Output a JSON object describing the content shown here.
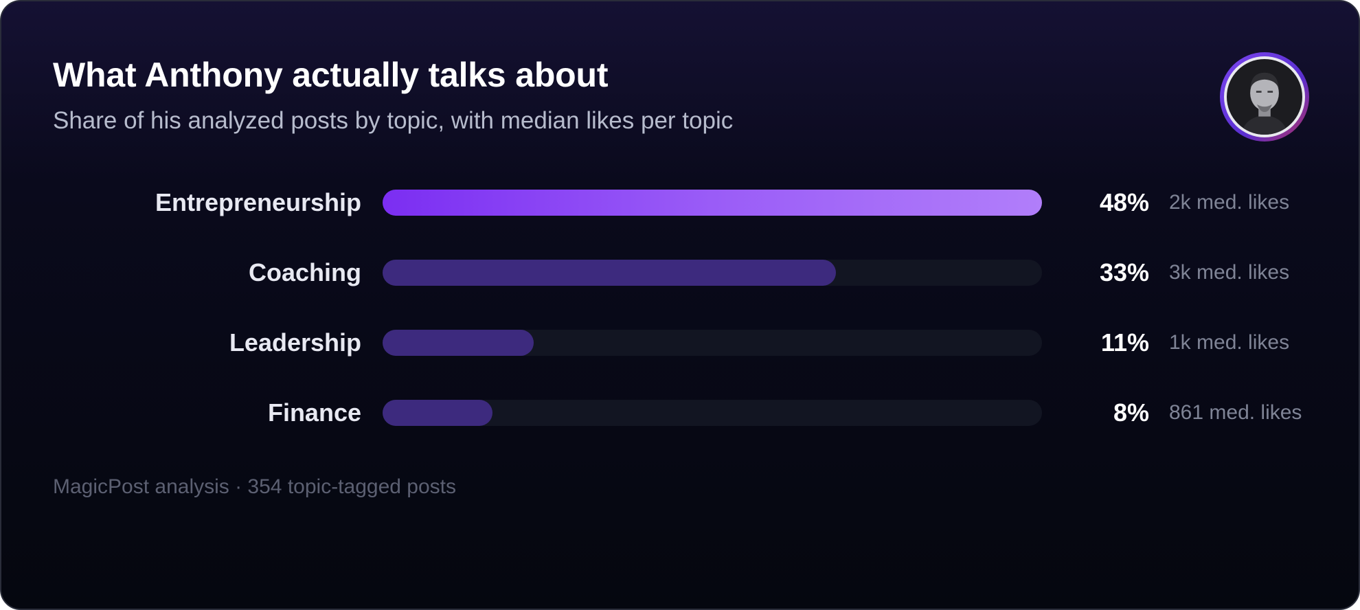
{
  "card": {
    "title": "What Anthony actually talks about",
    "subtitle": "Share of his analyzed posts by topic, with median likes per topic",
    "footer": "MagicPost analysis · 354 topic-tagged posts",
    "avatar_icon": "person-portrait-icon"
  },
  "chart_data": {
    "type": "bar",
    "orientation": "horizontal",
    "title": "What Anthony actually talks about",
    "subtitle": "Share of his analyzed posts by topic, with median likes per topic",
    "categories": [
      "Entrepreneurship",
      "Coaching",
      "Leadership",
      "Finance"
    ],
    "values": [
      48,
      33,
      11,
      8
    ],
    "value_labels": [
      "48%",
      "33%",
      "11%",
      "8%"
    ],
    "median_likes": [
      "2k med. likes",
      "3k med. likes",
      "1k med. likes",
      "861 med. likes"
    ],
    "xlim": [
      0,
      48
    ],
    "grid": false,
    "highlight_color": "#8b45f5",
    "bar_color": "#3d2a7e",
    "track_color": "#121522"
  }
}
